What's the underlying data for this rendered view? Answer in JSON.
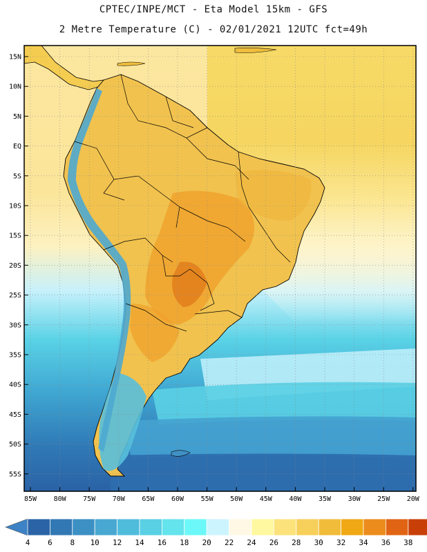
{
  "header": {
    "line1": "CPTEC/INPE/MCT -  Eta Model 15km - GFS",
    "line2": "2 Metre Temperature (C) - 02/01/2021 12UTC fct=49h"
  },
  "map": {
    "lat_labels": [
      "15N",
      "10N",
      "5N",
      "EQ",
      "5S",
      "10S",
      "15S",
      "20S",
      "25S",
      "30S",
      "35S",
      "40S",
      "45S",
      "50S",
      "55S"
    ],
    "lon_labels": [
      "85W",
      "80W",
      "75W",
      "70W",
      "65W",
      "60W",
      "55W",
      "50W",
      "45W",
      "40W",
      "35W",
      "30W",
      "25W",
      "20W"
    ]
  },
  "colorbar": {
    "labels": [
      "4",
      "6",
      "8",
      "10",
      "12",
      "14",
      "16",
      "18",
      "20",
      "22",
      "24",
      "26",
      "28",
      "30",
      "32",
      "34",
      "36",
      "38"
    ],
    "colors": [
      "#2a64a6",
      "#3278b4",
      "#3c90c4",
      "#48a8d2",
      "#50bcdc",
      "#5ad0e4",
      "#64e4ec",
      "#6cf8f8",
      "#ccf4ff",
      "#fff8e4",
      "#fff8a0",
      "#fce27a",
      "#f6d05a",
      "#f0bc3a",
      "#f0a814",
      "#ec8c1c",
      "#e06414",
      "#c84008"
    ],
    "under_color": "#3c82c4",
    "over_color": "#c43c0a"
  }
}
